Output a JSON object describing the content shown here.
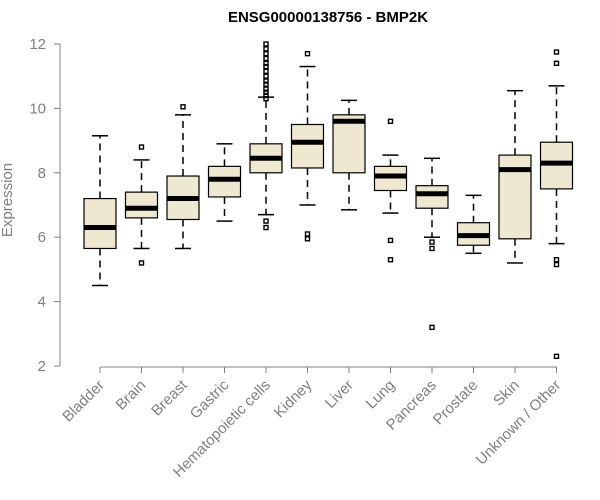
{
  "chart_data": {
    "type": "boxplot",
    "title": "ENSG00000138756 - BMP2K",
    "xlabel": "",
    "ylabel": "Expression",
    "ylim": [
      2,
      12
    ],
    "yticks": [
      2,
      4,
      6,
      8,
      10,
      12
    ],
    "grid": false,
    "box_fill": "#ede8cf",
    "categories": [
      "Bladder",
      "Brain",
      "Breast",
      "Gastric",
      "Hematopoietic cells",
      "Kidney",
      "Liver",
      "Lung",
      "Pancreas",
      "Prostate",
      "Skin",
      "Unknown / Other"
    ],
    "boxes": [
      {
        "whisker_low": 4.5,
        "q1": 5.65,
        "median": 6.3,
        "q3": 7.2,
        "whisker_high": 9.15,
        "outliers": []
      },
      {
        "whisker_low": 5.65,
        "q1": 6.6,
        "median": 6.9,
        "q3": 7.4,
        "whisker_high": 8.4,
        "outliers": [
          8.8,
          5.2
        ]
      },
      {
        "whisker_low": 5.65,
        "q1": 6.55,
        "median": 7.2,
        "q3": 7.9,
        "whisker_high": 9.8,
        "outliers": [
          10.05
        ]
      },
      {
        "whisker_low": 6.5,
        "q1": 7.25,
        "median": 7.8,
        "q3": 8.2,
        "whisker_high": 8.9,
        "outliers": []
      },
      {
        "whisker_low": 6.7,
        "q1": 8.0,
        "median": 8.45,
        "q3": 8.9,
        "whisker_high": 10.35,
        "outliers": [
          12.0,
          11.85,
          11.7,
          11.55,
          11.4,
          11.3,
          11.15,
          11.0,
          10.85,
          10.75,
          10.6,
          10.5,
          10.4,
          10.3,
          6.5,
          6.3
        ]
      },
      {
        "whisker_low": 7.0,
        "q1": 8.15,
        "median": 8.95,
        "q3": 9.5,
        "whisker_high": 11.3,
        "outliers": [
          11.7,
          6.1,
          5.95
        ]
      },
      {
        "whisker_low": 6.85,
        "q1": 8.0,
        "median": 9.6,
        "q3": 9.8,
        "whisker_high": 10.25,
        "outliers": []
      },
      {
        "whisker_low": 6.75,
        "q1": 7.45,
        "median": 7.9,
        "q3": 8.2,
        "whisker_high": 8.55,
        "outliers": [
          9.6,
          5.9,
          5.3
        ]
      },
      {
        "whisker_low": 6.0,
        "q1": 6.9,
        "median": 7.35,
        "q3": 7.6,
        "whisker_high": 8.45,
        "outliers": [
          5.85,
          5.65,
          3.2
        ]
      },
      {
        "whisker_low": 5.5,
        "q1": 5.75,
        "median": 6.05,
        "q3": 6.45,
        "whisker_high": 7.3,
        "outliers": []
      },
      {
        "whisker_low": 5.2,
        "q1": 5.95,
        "median": 8.1,
        "q3": 8.55,
        "whisker_high": 10.55,
        "outliers": []
      },
      {
        "whisker_low": 5.8,
        "q1": 7.5,
        "median": 8.3,
        "q3": 8.95,
        "whisker_high": 10.7,
        "outliers": [
          11.75,
          11.4,
          5.3,
          5.15,
          2.3
        ]
      }
    ]
  }
}
